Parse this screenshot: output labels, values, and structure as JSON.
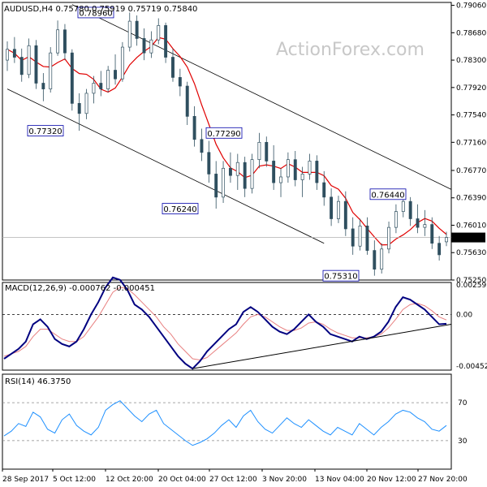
{
  "header": {
    "symbol_line": "AUDUSD,H4  0.75780 0.75919 0.75719 0.75840",
    "watermark": "ActionForex.com"
  },
  "chart_data": [
    {
      "type": "candlestick",
      "title": "AUDUSD,H4",
      "ohlc_last": {
        "open": 0.7578,
        "high": 0.75919,
        "low": 0.75719,
        "close": 0.7584
      },
      "ylim": [
        0.7525,
        0.791
      ],
      "y_ticks": [
        "0.79060",
        "0.78680",
        "0.78300",
        "0.77920",
        "0.77540",
        "0.77160",
        "0.76770",
        "0.76390",
        "0.76010",
        "0.75630",
        "0.75250"
      ],
      "current_price_label": "0.75840",
      "x_tick_labels": [
        "28 Sep 2017",
        "5 Oct 12:00",
        "12 Oct 20:00",
        "20 Oct 04:00",
        "27 Oct 12:00",
        "3 Nov 20:00",
        "13 Nov 04:00",
        "20 Nov 12:00",
        "27 Nov 20:00"
      ],
      "annotations": [
        {
          "text": "0.78960",
          "value": 0.7896
        },
        {
          "text": "0.77320",
          "value": 0.7732
        },
        {
          "text": "0.77290",
          "value": 0.7729
        },
        {
          "text": "0.76240",
          "value": 0.7624
        },
        {
          "text": "0.76440",
          "value": 0.7644
        },
        {
          "text": "0.75310",
          "value": 0.7531
        }
      ],
      "series": [
        {
          "values": [
            [
              0.783,
              0.7856,
              0.7815,
              0.7845
            ],
            [
              0.7845,
              0.7862,
              0.7826,
              0.7834
            ],
            [
              0.7834,
              0.7846,
              0.78,
              0.781
            ],
            [
              0.781,
              0.786,
              0.7805,
              0.785
            ],
            [
              0.785,
              0.7858,
              0.779,
              0.7798
            ],
            [
              0.7798,
              0.7812,
              0.7773,
              0.779
            ],
            [
              0.779,
              0.7848,
              0.7785,
              0.784
            ],
            [
              0.784,
              0.7885,
              0.7836,
              0.7872
            ],
            [
              0.7872,
              0.788,
              0.783,
              0.784
            ],
            [
              0.784,
              0.7845,
              0.776,
              0.777
            ],
            [
              0.777,
              0.7784,
              0.7732,
              0.7756
            ],
            [
              0.7756,
              0.779,
              0.7748,
              0.7784
            ],
            [
              0.7784,
              0.7808,
              0.777,
              0.7798
            ],
            [
              0.7798,
              0.7815,
              0.778,
              0.779
            ],
            [
              0.779,
              0.7822,
              0.7785,
              0.7816
            ],
            [
              0.7816,
              0.7838,
              0.7796,
              0.7804
            ],
            [
              0.7804,
              0.7855,
              0.78,
              0.7848
            ],
            [
              0.7848,
              0.7896,
              0.7842,
              0.7884
            ],
            [
              0.7884,
              0.7892,
              0.785,
              0.786
            ],
            [
              0.786,
              0.7874,
              0.783,
              0.784
            ],
            [
              0.784,
              0.787,
              0.7833,
              0.7858
            ],
            [
              0.7858,
              0.7888,
              0.7852,
              0.7878
            ],
            [
              0.7878,
              0.7882,
              0.7826,
              0.7834
            ],
            [
              0.7834,
              0.7846,
              0.78,
              0.7806
            ],
            [
              0.7806,
              0.7818,
              0.778,
              0.7794
            ],
            [
              0.7794,
              0.78,
              0.774,
              0.7752
            ],
            [
              0.7752,
              0.7766,
              0.771,
              0.772
            ],
            [
              0.772,
              0.7735,
              0.769,
              0.7702
            ],
            [
              0.7702,
              0.7718,
              0.766,
              0.7672
            ],
            [
              0.7672,
              0.769,
              0.7624,
              0.764
            ],
            [
              0.764,
              0.769,
              0.7632,
              0.768
            ],
            [
              0.768,
              0.7702,
              0.766,
              0.767
            ],
            [
              0.767,
              0.77,
              0.765,
              0.7688
            ],
            [
              0.7688,
              0.7696,
              0.764,
              0.7652
            ],
            [
              0.7652,
              0.77,
              0.7645,
              0.7692
            ],
            [
              0.7692,
              0.7729,
              0.768,
              0.7716
            ],
            [
              0.7716,
              0.7724,
              0.7682,
              0.769
            ],
            [
              0.769,
              0.7712,
              0.765,
              0.766
            ],
            [
              0.766,
              0.768,
              0.764,
              0.7668
            ],
            [
              0.7668,
              0.7702,
              0.766,
              0.7692
            ],
            [
              0.7692,
              0.7704,
              0.7655,
              0.7664
            ],
            [
              0.7664,
              0.7682,
              0.764,
              0.7672
            ],
            [
              0.7672,
              0.77,
              0.7664,
              0.769
            ],
            [
              0.769,
              0.7698,
              0.765,
              0.766
            ],
            [
              0.766,
              0.7676,
              0.7628,
              0.764
            ],
            [
              0.764,
              0.7652,
              0.76,
              0.761
            ],
            [
              0.761,
              0.7642,
              0.7604,
              0.7634
            ],
            [
              0.7634,
              0.7648,
              0.7586,
              0.7596
            ],
            [
              0.7596,
              0.7612,
              0.756,
              0.7572
            ],
            [
              0.7572,
              0.761,
              0.7566,
              0.76
            ],
            [
              0.76,
              0.7612,
              0.756,
              0.7566
            ],
            [
              0.7566,
              0.758,
              0.7531,
              0.754
            ],
            [
              0.754,
              0.7576,
              0.7534,
              0.7568
            ],
            [
              0.7568,
              0.7606,
              0.7562,
              0.7598
            ],
            [
              0.7598,
              0.763,
              0.759,
              0.762
            ],
            [
              0.762,
              0.7644,
              0.7612,
              0.7634
            ],
            [
              0.7634,
              0.764,
              0.76,
              0.761
            ],
            [
              0.761,
              0.763,
              0.759,
              0.7598
            ],
            [
              0.7598,
              0.7622,
              0.7586,
              0.7602
            ],
            [
              0.7602,
              0.7612,
              0.7568,
              0.7576
            ],
            [
              0.7576,
              0.7586,
              0.7552,
              0.756
            ],
            [
              0.7578,
              0.7592,
              0.7572,
              0.7584
            ]
          ]
        }
      ]
    },
    {
      "type": "line",
      "title": "MACD(12,26,9) -0.000762 -0.000451",
      "ylim": [
        -0.004522,
        0.002595
      ],
      "y_ticks": [
        "0.002595",
        "0.00",
        "-0.004522"
      ],
      "series": [
        {
          "values": [
            -0.0036,
            -0.0032,
            -0.0028,
            -0.0022,
            -0.0008,
            -0.0004,
            -0.001,
            -0.002,
            -0.0024,
            -0.0026,
            -0.0022,
            -0.0012,
            0.0,
            0.001,
            0.0022,
            0.003,
            0.0028,
            0.002,
            0.0008,
            0.0004,
            -0.0002,
            -0.001,
            -0.0018,
            -0.0026,
            -0.0034,
            -0.004,
            -0.0044,
            -0.0038,
            -0.003,
            -0.0024,
            -0.0018,
            -0.0012,
            -0.0008,
            0.0002,
            0.0006,
            0.0002,
            -0.0004,
            -0.001,
            -0.0014,
            -0.0016,
            -0.0012,
            -0.0006,
            0.0,
            -0.0006,
            -0.001,
            -0.0016,
            -0.0018,
            -0.002,
            -0.0022,
            -0.0018,
            -0.002,
            -0.0018,
            -0.0014,
            -0.0006,
            0.0006,
            0.0014,
            0.0012,
            0.0008,
            0.0004,
            -0.0002,
            -0.0008,
            -0.00076
          ]
        },
        {
          "values": [
            -0.0034,
            -0.0032,
            -0.003,
            -0.0026,
            -0.0018,
            -0.0012,
            -0.0012,
            -0.0016,
            -0.002,
            -0.0022,
            -0.0022,
            -0.0018,
            -0.001,
            -0.0002,
            0.0008,
            0.0018,
            0.0022,
            0.0021,
            0.0016,
            0.001,
            0.0004,
            -0.0002,
            -0.001,
            -0.0016,
            -0.0024,
            -0.003,
            -0.0036,
            -0.0037,
            -0.0035,
            -0.003,
            -0.0025,
            -0.002,
            -0.0015,
            -0.0008,
            -0.0002,
            0.0,
            -0.0002,
            -0.0006,
            -0.001,
            -0.0013,
            -0.0013,
            -0.0011,
            -0.0007,
            -0.0006,
            -0.0008,
            -0.0012,
            -0.0015,
            -0.0017,
            -0.0019,
            -0.0019,
            -0.0019,
            -0.0018,
            -0.0016,
            -0.0011,
            -0.0004,
            0.0004,
            0.0008,
            0.0009,
            0.0007,
            0.0003,
            -0.0002,
            -0.000451
          ]
        }
      ]
    },
    {
      "type": "line",
      "title": "RSI(14) 46.3750",
      "ylim": [
        0,
        100
      ],
      "levels": [
        70,
        30
      ],
      "y_ticks": [
        "70",
        "30"
      ],
      "series": [
        {
          "values": [
            35,
            40,
            48,
            45,
            60,
            55,
            42,
            38,
            52,
            58,
            46,
            40,
            36,
            44,
            62,
            68,
            72,
            64,
            56,
            50,
            58,
            62,
            48,
            42,
            36,
            30,
            25,
            28,
            32,
            38,
            46,
            52,
            44,
            56,
            62,
            50,
            42,
            38,
            46,
            54,
            48,
            44,
            52,
            46,
            40,
            36,
            44,
            40,
            36,
            48,
            42,
            36,
            44,
            50,
            58,
            62,
            60,
            54,
            50,
            42,
            40,
            46
          ]
        }
      ]
    }
  ]
}
